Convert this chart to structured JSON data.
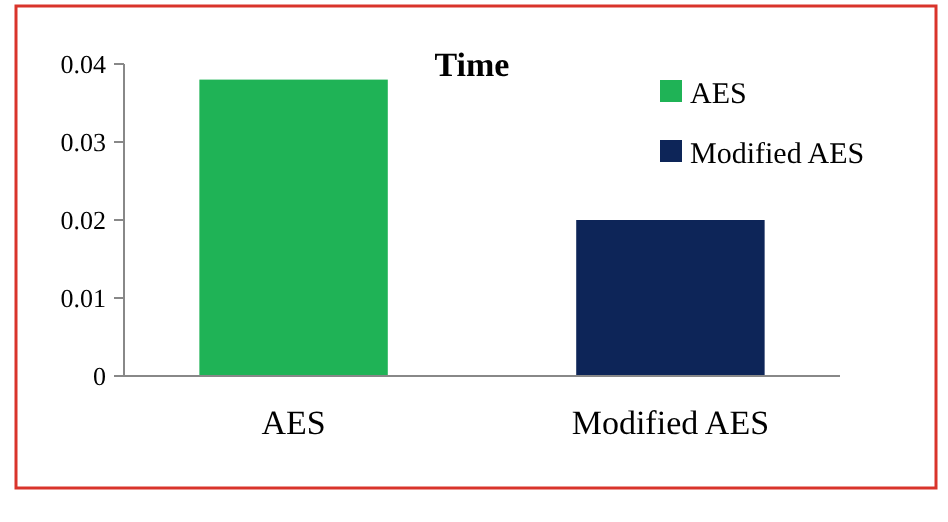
{
  "chart_data": {
    "type": "bar",
    "title": "Time",
    "categories": [
      "AES",
      "Modified AES"
    ],
    "series": [
      {
        "name": "AES",
        "color": "#1fb356",
        "values": [
          0.038,
          null
        ]
      },
      {
        "name": "Modified AES",
        "color": "#0d2558",
        "values": [
          null,
          0.02
        ]
      }
    ],
    "ylim": [
      0,
      0.04
    ],
    "yticks": [
      0,
      0.01,
      0.02,
      0.03,
      0.04
    ],
    "legend": "top right",
    "grid": false
  }
}
